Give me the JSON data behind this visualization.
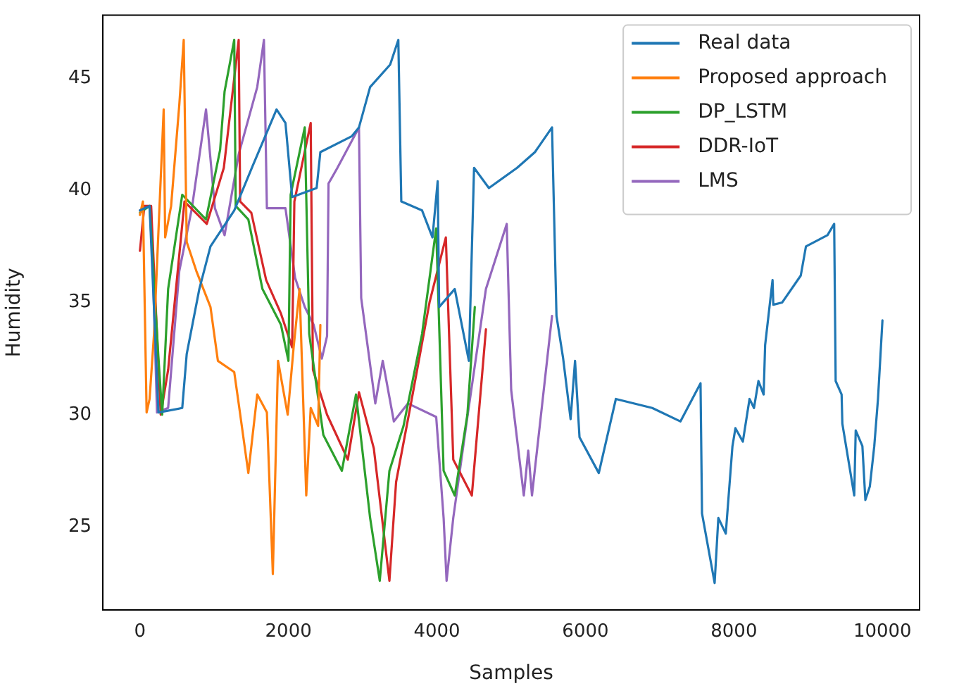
{
  "chart_data": {
    "type": "line",
    "xlabel": "Samples",
    "ylabel": "Humidity",
    "xlim": [
      -500,
      10500
    ],
    "ylim": [
      21.3,
      47.8
    ],
    "xticks": [
      0,
      2000,
      4000,
      6000,
      8000,
      10000
    ],
    "yticks": [
      25,
      30,
      35,
      40,
      45
    ],
    "legend": "top right",
    "grid": false,
    "marker": "none",
    "line_style": "solid",
    "series": [
      {
        "name": "Real data",
        "color": "#1f77b4",
        "x": [
          0,
          130,
          250,
          570,
          630,
          800,
          950,
          1270,
          1520,
          1840,
          1960,
          2050,
          2380,
          2430,
          2850,
          2950,
          3100,
          3370,
          3480,
          3520,
          3800,
          3940,
          4010,
          4030,
          4240,
          4430,
          4500,
          4700,
          5080,
          5320,
          5550,
          5610,
          5700,
          5800,
          5860,
          5920,
          6180,
          6410,
          6900,
          7280,
          7550,
          7570,
          7740,
          7790,
          7890,
          7980,
          8020,
          8120,
          8210,
          8270,
          8330,
          8400,
          8420,
          8520,
          8530,
          8650,
          8900,
          8970,
          9260,
          9350,
          9370,
          9450,
          9460,
          9620,
          9640,
          9730,
          9750,
          9770,
          9830,
          9890,
          9940,
          10000
        ],
        "values": [
          39.1,
          39.3,
          30.1,
          30.3,
          32.7,
          35.6,
          37.5,
          39.1,
          41.1,
          43.6,
          43.0,
          39.7,
          40.1,
          41.7,
          42.4,
          42.8,
          44.6,
          45.6,
          46.7,
          39.5,
          39.1,
          37.9,
          40.4,
          34.8,
          35.6,
          32.4,
          41.0,
          40.1,
          41.0,
          41.7,
          42.8,
          34.4,
          32.5,
          29.8,
          32.4,
          29.0,
          27.4,
          30.7,
          30.3,
          29.7,
          31.4,
          25.6,
          22.5,
          25.4,
          24.7,
          28.6,
          29.4,
          28.8,
          30.7,
          30.3,
          31.5,
          30.9,
          33.1,
          36.0,
          34.9,
          35.0,
          36.2,
          37.5,
          38.0,
          38.5,
          31.5,
          30.9,
          29.6,
          26.4,
          29.3,
          28.6,
          27.4,
          26.2,
          26.8,
          28.6,
          30.7,
          34.2
        ]
      },
      {
        "name": "Proposed approach",
        "color": "#ff7f0e",
        "x": [
          0,
          40,
          90,
          130,
          190,
          320,
          340,
          420,
          530,
          590,
          630,
          760,
          950,
          1050,
          1270,
          1330,
          1460,
          1580,
          1710,
          1790,
          1860,
          1990,
          2070,
          2150,
          2240,
          2300,
          2400,
          2430
        ],
        "values": [
          38.9,
          39.5,
          30.1,
          30.7,
          33.6,
          43.6,
          37.9,
          39.3,
          43.8,
          46.7,
          37.7,
          36.4,
          34.8,
          32.4,
          31.9,
          30.5,
          27.4,
          30.9,
          30.1,
          22.9,
          32.4,
          30.0,
          33.0,
          35.6,
          26.4,
          30.3,
          29.5,
          34.0
        ]
      },
      {
        "name": "DP_LSTM",
        "color": "#2ca02c",
        "x": [
          0,
          130,
          250,
          300,
          380,
          570,
          890,
          1080,
          1140,
          1270,
          1290,
          1460,
          1650,
          1900,
          2000,
          2030,
          2220,
          2280,
          2470,
          2720,
          2910,
          3100,
          3230,
          3360,
          3550,
          3800,
          3990,
          4090,
          4240,
          4410,
          4510
        ],
        "values": [
          39.0,
          39.3,
          32.5,
          30.0,
          35.6,
          39.8,
          38.7,
          41.8,
          44.4,
          46.7,
          39.3,
          38.7,
          35.6,
          34.0,
          32.4,
          39.8,
          42.8,
          33.6,
          29.1,
          27.5,
          30.9,
          25.4,
          22.6,
          27.5,
          29.5,
          33.6,
          38.3,
          27.5,
          26.4,
          30.0,
          34.8
        ]
      },
      {
        "name": "DDR-IoT",
        "color": "#d62728",
        "x": [
          0,
          60,
          150,
          280,
          380,
          600,
          900,
          1130,
          1330,
          1350,
          1500,
          1700,
          1900,
          2050,
          2080,
          2300,
          2330,
          2520,
          2800,
          2950,
          3150,
          3360,
          3450,
          3650,
          3900,
          4120,
          4220,
          4470,
          4660
        ],
        "values": [
          37.3,
          39.3,
          39.3,
          30.0,
          32.0,
          39.5,
          38.5,
          41.0,
          46.7,
          39.5,
          39.0,
          36.0,
          34.5,
          33.0,
          39.5,
          43.0,
          32.0,
          30.0,
          28.0,
          31.0,
          28.5,
          22.6,
          27.0,
          30.5,
          35.0,
          37.9,
          28.0,
          26.4,
          33.8
        ]
      },
      {
        "name": "LMS",
        "color": "#9467bd",
        "x": [
          0,
          150,
          230,
          380,
          530,
          700,
          890,
          1010,
          1140,
          1330,
          1580,
          1670,
          1710,
          1960,
          2090,
          2220,
          2340,
          2450,
          2520,
          2540,
          2660,
          2950,
          2980,
          3170,
          3270,
          3420,
          3610,
          3990,
          4090,
          4130,
          4220,
          4410,
          4660,
          4940,
          5000,
          5170,
          5230,
          5280,
          5550
        ],
        "values": [
          39.1,
          39.3,
          30.1,
          30.3,
          36.4,
          39.2,
          43.6,
          39.2,
          38.0,
          41.6,
          44.6,
          46.7,
          39.2,
          39.2,
          36.1,
          34.8,
          34.0,
          32.5,
          33.5,
          40.3,
          41.0,
          42.8,
          35.2,
          30.5,
          32.4,
          29.7,
          30.5,
          29.9,
          25.4,
          22.6,
          25.4,
          29.9,
          35.6,
          38.5,
          31.1,
          26.4,
          28.4,
          26.4,
          34.4
        ]
      }
    ]
  }
}
